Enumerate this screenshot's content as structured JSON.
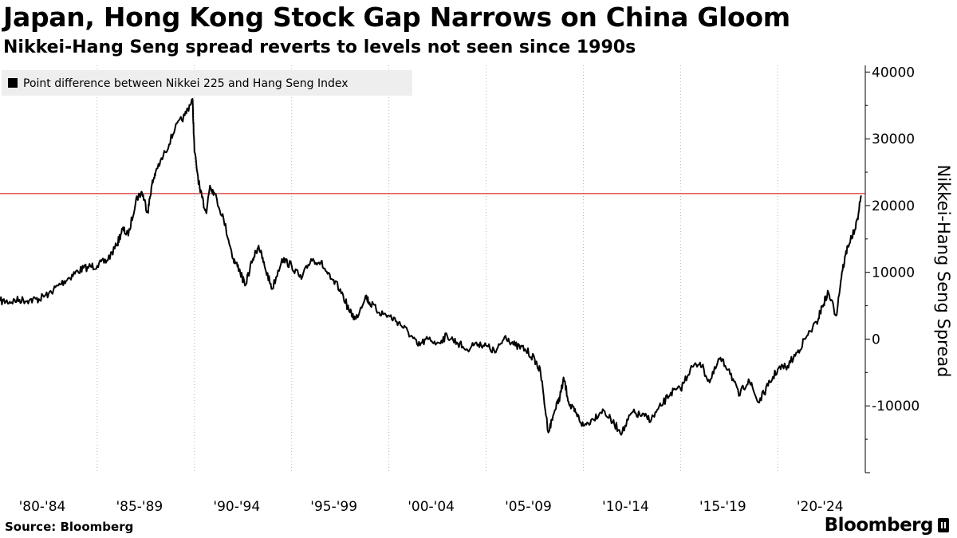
{
  "header": {
    "title": "Japan, Hong Kong Stock Gap Narrows on China Gloom",
    "subtitle": "Nikkei-Hang Seng spread reverts to levels not seen since 1990s"
  },
  "footer": {
    "source": "Source: Bloomberg",
    "brand": "Bloomberg"
  },
  "chart_data": {
    "type": "line",
    "title": "Japan, Hong Kong Stock Gap Narrows on China Gloom",
    "subtitle": "Nikkei-Hang Seng spread reverts to levels not seen since 1990s",
    "ylabel": "Nikkei-Hang Seng Spread",
    "xlabel": "",
    "legend": {
      "placement": "top-left",
      "label": "Point difference between Nikkei 225 and Hang Seng Index"
    },
    "xlim": [
      1980.0,
      2024.5
    ],
    "ylim": [
      -20000,
      41000
    ],
    "x_ticks": [
      1980,
      1985,
      1990,
      1995,
      2000,
      2005,
      2010,
      2015,
      2020
    ],
    "x_tick_labels": [
      "'80-'84",
      "'85-'89",
      "'90-'94",
      "'95-'99",
      "'00-'04",
      "'05-'09",
      "'10-'14",
      "'15-'19",
      "'20-'24"
    ],
    "y_ticks": [
      -10000,
      0,
      10000,
      20000,
      30000,
      40000
    ],
    "y_tick_labels": [
      "-10000",
      "0",
      "10000",
      "20000",
      "30000",
      "40000"
    ],
    "reference_line": {
      "value": 21800,
      "color": "#cc0000"
    },
    "grid": "vertical dotted",
    "series": [
      {
        "name": "Point difference between Nikkei 225 and Hang Seng Index",
        "color": "#000000",
        "x": [
          1980.0,
          1980.5,
          1981.0,
          1981.5,
          1982.0,
          1982.5,
          1983.0,
          1983.5,
          1984.0,
          1984.5,
          1985.0,
          1985.5,
          1986.0,
          1986.3,
          1986.6,
          1987.0,
          1987.3,
          1987.6,
          1987.8,
          1988.0,
          1988.5,
          1989.0,
          1989.5,
          1989.9,
          1990.0,
          1990.3,
          1990.6,
          1990.8,
          1991.0,
          1991.5,
          1992.0,
          1992.3,
          1992.6,
          1993.0,
          1993.3,
          1993.6,
          1994.0,
          1994.5,
          1995.0,
          1995.5,
          1996.0,
          1996.5,
          1997.0,
          1997.5,
          1998.0,
          1998.3,
          1998.8,
          1999.0,
          1999.5,
          2000.0,
          2000.5,
          2001.0,
          2001.5,
          2002.0,
          2002.5,
          2003.0,
          2003.5,
          2004.0,
          2004.5,
          2005.0,
          2005.5,
          2006.0,
          2006.5,
          2007.0,
          2007.5,
          2007.8,
          2008.2,
          2008.5,
          2008.8,
          2009.0,
          2009.3,
          2009.6,
          2010.0,
          2010.5,
          2011.0,
          2011.5,
          2012.0,
          2012.5,
          2013.0,
          2013.5,
          2014.0,
          2014.5,
          2015.0,
          2015.5,
          2016.0,
          2016.5,
          2017.0,
          2017.5,
          2018.0,
          2018.5,
          2019.0,
          2019.5,
          2020.0,
          2020.5,
          2021.0,
          2021.5,
          2022.0,
          2022.3,
          2022.6,
          2023.0,
          2023.3,
          2023.6,
          2024.0,
          2024.3
        ],
        "values": [
          5700,
          5600,
          5900,
          5800,
          6000,
          6800,
          8000,
          9100,
          10200,
          10800,
          11000,
          11800,
          14000,
          16500,
          15500,
          21000,
          22000,
          19000,
          23000,
          25000,
          28000,
          31500,
          33500,
          36000,
          28000,
          22000,
          19000,
          23000,
          22000,
          18000,
          12000,
          10500,
          8000,
          12000,
          14000,
          11000,
          7500,
          12000,
          11000,
          9000,
          12000,
          11500,
          9000,
          7500,
          4000,
          3000,
          6500,
          5500,
          4000,
          3500,
          2500,
          1000,
          -1000,
          0,
          -500,
          500,
          -500,
          -1500,
          -500,
          -1000,
          -2000,
          500,
          -1000,
          -1500,
          -3000,
          -5000,
          -14000,
          -11000,
          -8500,
          -6000,
          -10000,
          -11000,
          -13000,
          -12000,
          -10500,
          -12500,
          -14000,
          -11000,
          -11500,
          -12000,
          -10000,
          -8000,
          -7500,
          -4500,
          -3500,
          -6500,
          -3000,
          -4500,
          -8500,
          -6000,
          -9500,
          -7000,
          -4500,
          -4000,
          -2000,
          500,
          2500,
          5000,
          7000,
          3500,
          10000,
          14000,
          16500,
          21500
        ]
      }
    ]
  }
}
